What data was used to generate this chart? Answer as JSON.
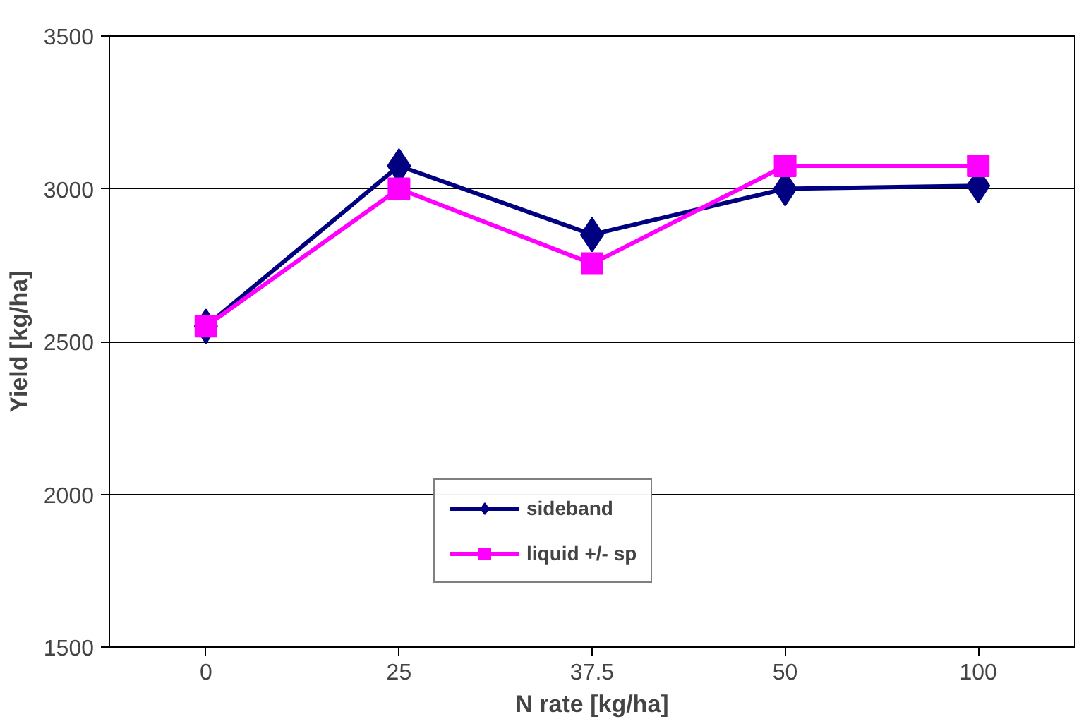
{
  "chart_data": {
    "type": "line",
    "xlabel": "N rate [kg/ha]",
    "ylabel": "Yield [kg/ha]",
    "categories": [
      "0",
      "25",
      "37.5",
      "50",
      "100"
    ],
    "series": [
      {
        "name": "sideband",
        "color": "#000080",
        "marker": "diamond",
        "values": [
          2550,
          3075,
          2850,
          3000,
          3010
        ]
      },
      {
        "name": "liquid +/- sp",
        "color": "#ff00ff",
        "marker": "square",
        "values": [
          2550,
          3000,
          2755,
          3075,
          3075
        ]
      }
    ],
    "ylim": [
      1500,
      3500
    ],
    "yticks": [
      1500,
      2000,
      2500,
      3000,
      3500
    ],
    "grid": "y",
    "legend": "bottom",
    "line_style": "solid"
  }
}
